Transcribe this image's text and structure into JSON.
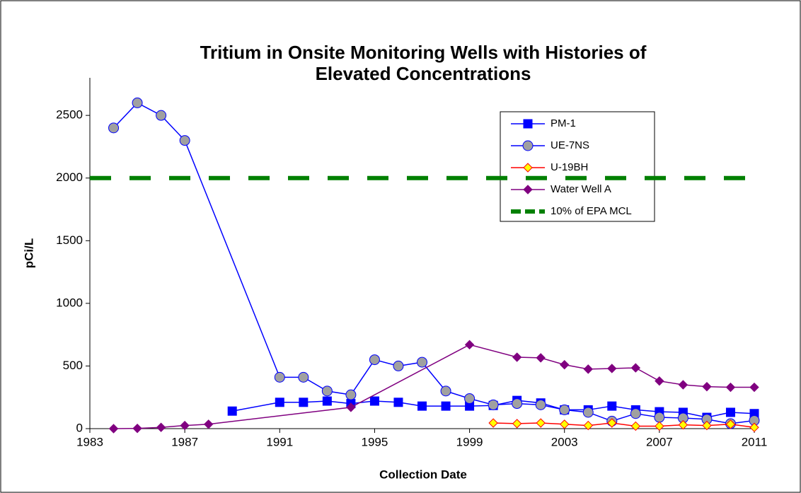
{
  "chart_data": {
    "type": "line",
    "title": [
      "Tritium in Onsite Monitoring Wells with Histories of",
      "Elevated Concentrations"
    ],
    "x_label": "Collection Date",
    "y_label": "pCi/L",
    "xlim": [
      1983,
      2011
    ],
    "xticks": [
      1983,
      1987,
      1991,
      1995,
      1999,
      2003,
      2007,
      2011
    ],
    "ylim": [
      0,
      2800
    ],
    "yticks": [
      0,
      500,
      1000,
      1500,
      2000,
      2500
    ],
    "legend": "upper right",
    "series": [
      {
        "name": "PM-1",
        "color": "#0000ff",
        "marker": "square",
        "marker_fill": "#0000ff",
        "x": [
          1989,
          1991,
          1992,
          1993,
          1994,
          1995,
          1996,
          1997,
          1998,
          1999,
          2000,
          2001,
          2002,
          2003,
          2004,
          2005,
          2006,
          2007,
          2008,
          2009,
          2010,
          2011
        ],
        "values": [
          140,
          210,
          210,
          220,
          200,
          220,
          210,
          180,
          180,
          180,
          185,
          225,
          205,
          150,
          150,
          180,
          150,
          135,
          130,
          90,
          130,
          120
        ]
      },
      {
        "name": "UE-7NS",
        "color": "#0000ff",
        "marker": "circle",
        "marker_fill": "#a0a0a0",
        "x": [
          1984,
          1985,
          1986,
          1987,
          1991,
          1992,
          1993,
          1994,
          1995,
          1996,
          1997,
          1998,
          1999,
          2000,
          2001,
          2002,
          2003,
          2004,
          2005,
          2006,
          2007,
          2008,
          2009,
          2010,
          2011
        ],
        "values": [
          2400,
          2600,
          2500,
          2300,
          410,
          410,
          300,
          270,
          550,
          500,
          530,
          300,
          240,
          190,
          200,
          190,
          150,
          130,
          60,
          120,
          90,
          85,
          75,
          40,
          65
        ]
      },
      {
        "name": "U-19BH",
        "color": "#ff0000",
        "marker": "diamond",
        "marker_fill": "#ffff00",
        "x": [
          2000,
          2001,
          2002,
          2003,
          2004,
          2005,
          2006,
          2007,
          2008,
          2009,
          2010,
          2011
        ],
        "values": [
          45,
          40,
          45,
          35,
          25,
          45,
          20,
          20,
          30,
          25,
          35,
          10
        ]
      },
      {
        "name": "Water Well A",
        "color": "#800080",
        "marker": "diamond",
        "marker_fill": "#800080",
        "x": [
          1984,
          1985,
          1986,
          1987,
          1988,
          1994,
          1999,
          2001,
          2002,
          2003,
          2004,
          2005,
          2006,
          2007,
          2008,
          2009,
          2010,
          2011
        ],
        "values": [
          0,
          2,
          10,
          25,
          35,
          170,
          670,
          570,
          565,
          510,
          475,
          480,
          485,
          380,
          350,
          335,
          330,
          330
        ]
      },
      {
        "name": "10% of EPA MCL",
        "color": "#008000",
        "marker": "none",
        "dashed": true,
        "x": [
          1983,
          2011
        ],
        "values": [
          2000,
          2000
        ]
      }
    ]
  }
}
